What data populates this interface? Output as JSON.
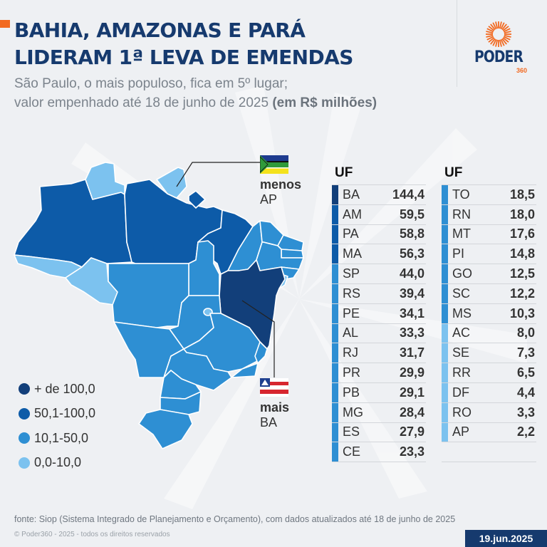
{
  "header": {
    "title_lines": [
      "BAHIA, AMAZONAS E PARÁ",
      "LIDERAM 1ª LEVA DE EMENDAS"
    ],
    "subtitle_line1": "São Paulo, o mais populoso, fica em 5º lugar;",
    "subtitle_line2_prefix": "valor empenhado até 18 de junho de 2025 ",
    "subtitle_line2_bold": "(em R$ milhões)",
    "accent_color": "#f26a21",
    "title_color": "#163a6e"
  },
  "logo": {
    "name": "PODER",
    "number": "360",
    "icon": "sun-burst-icon"
  },
  "legend": {
    "items": [
      {
        "label": "+ de 100,0",
        "color": "#123f7a"
      },
      {
        "label": "50,1-100,0",
        "color": "#0d5ba8"
      },
      {
        "label": "10,1-50,0",
        "color": "#2e8fd3"
      },
      {
        "label": "0,0-10,0",
        "color": "#7cc2ef"
      }
    ]
  },
  "callouts": {
    "least": {
      "word": "menos",
      "uf": "AP",
      "flag": "amapa-flag-icon"
    },
    "most": {
      "word": "mais",
      "uf": "BA",
      "flag": "bahia-flag-icon"
    }
  },
  "chart_data": {
    "type": "table",
    "title": "BAHIA, AMAZONAS E PARÁ LIDERAM 1ª LEVA DE EMENDAS",
    "subtitle": "São Paulo, o mais populoso, fica em 5º lugar; valor empenhado até 18 de junho de 2025 (em R$ milhões)",
    "unit": "R$ milhões",
    "column_header": "UF",
    "categories": [
      "BA",
      "AM",
      "PA",
      "MA",
      "SP",
      "RS",
      "PE",
      "AL",
      "RJ",
      "PR",
      "PB",
      "MG",
      "ES",
      "CE",
      "TO",
      "RN",
      "MT",
      "PI",
      "GO",
      "SC",
      "MS",
      "AC",
      "SE",
      "RR",
      "DF",
      "RO",
      "AP"
    ],
    "values": [
      144.4,
      59.5,
      58.8,
      56.3,
      44.0,
      39.4,
      34.1,
      33.3,
      31.7,
      29.9,
      29.1,
      28.4,
      27.9,
      23.3,
      18.5,
      18.0,
      17.6,
      14.8,
      12.5,
      12.2,
      10.3,
      8.0,
      7.3,
      6.5,
      4.4,
      3.3,
      2.2
    ],
    "value_labels": [
      "144,4",
      "59,5",
      "58,8",
      "56,3",
      "44,0",
      "39,4",
      "34,1",
      "33,3",
      "31,7",
      "29,9",
      "29,1",
      "28,4",
      "27,9",
      "23,3",
      "18,5",
      "18,0",
      "17,6",
      "14,8",
      "12,5",
      "12,2",
      "10,3",
      "8,0",
      "7,3",
      "6,5",
      "4,4",
      "3,3",
      "2,2"
    ],
    "map_type": "choropleth",
    "bins": [
      "+ de 100,0",
      "50,1-100,0",
      "10,1-50,0",
      "0,0-10,0"
    ]
  },
  "table": {
    "header": "UF",
    "col1": [
      {
        "uf": "BA",
        "val": "144,4"
      },
      {
        "uf": "AM",
        "val": "59,5"
      },
      {
        "uf": "PA",
        "val": "58,8"
      },
      {
        "uf": "MA",
        "val": "56,3"
      },
      {
        "uf": "SP",
        "val": "44,0"
      },
      {
        "uf": "RS",
        "val": "39,4"
      },
      {
        "uf": "PE",
        "val": "34,1"
      },
      {
        "uf": "AL",
        "val": "33,3"
      },
      {
        "uf": "RJ",
        "val": "31,7"
      },
      {
        "uf": "PR",
        "val": "29,9"
      },
      {
        "uf": "PB",
        "val": "29,1"
      },
      {
        "uf": "MG",
        "val": "28,4"
      },
      {
        "uf": "ES",
        "val": "27,9"
      },
      {
        "uf": "CE",
        "val": "23,3"
      }
    ],
    "col2": [
      {
        "uf": "TO",
        "val": "18,5"
      },
      {
        "uf": "RN",
        "val": "18,0"
      },
      {
        "uf": "MT",
        "val": "17,6"
      },
      {
        "uf": "PI",
        "val": "14,8"
      },
      {
        "uf": "GO",
        "val": "12,5"
      },
      {
        "uf": "SC",
        "val": "12,2"
      },
      {
        "uf": "MS",
        "val": "10,3"
      },
      {
        "uf": "AC",
        "val": "8,0"
      },
      {
        "uf": "SE",
        "val": "7,3"
      },
      {
        "uf": "RR",
        "val": "6,5"
      },
      {
        "uf": "DF",
        "val": "4,4"
      },
      {
        "uf": "RO",
        "val": "3,3"
      },
      {
        "uf": "AP",
        "val": "2,2"
      }
    ]
  },
  "footer": {
    "source": "fonte: Siop (Sistema Integrado de Planejamento e Orçamento), com dados atualizados até 18 de junho de 2025",
    "copyright": "© Poder360 - 2025 - todos os direitos reservados",
    "date": "19.jun.2025"
  }
}
